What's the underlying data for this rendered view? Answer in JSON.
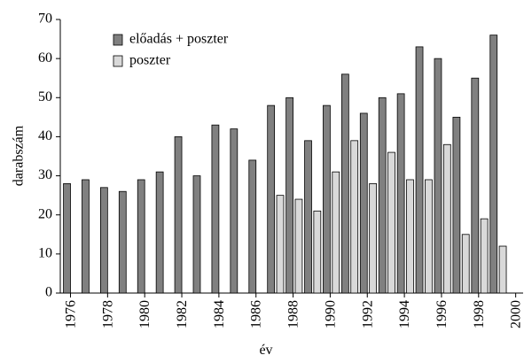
{
  "chart_data": {
    "type": "bar",
    "x": [
      1976,
      1977,
      1978,
      1979,
      1980,
      1981,
      1982,
      1983,
      1984,
      1985,
      1986,
      1987,
      1988,
      1989,
      1990,
      1991,
      1992,
      1993,
      1994,
      1995,
      1996,
      1997,
      1998,
      1999
    ],
    "series": [
      {
        "name": "előadás + poszter",
        "color": "#808080",
        "values": [
          28,
          29,
          27,
          26,
          29,
          31,
          40,
          30,
          43,
          42,
          34,
          48,
          50,
          39,
          48,
          56,
          46,
          50,
          51,
          63,
          60,
          45,
          55,
          66
        ]
      },
      {
        "name": "poszter",
        "color": "#d9d9d9",
        "values": [
          null,
          null,
          null,
          null,
          null,
          null,
          null,
          null,
          null,
          null,
          null,
          25,
          24,
          21,
          31,
          39,
          28,
          36,
          29,
          29,
          38,
          15,
          19,
          12
        ]
      }
    ],
    "xlabel": "év",
    "ylabel": "darabszám",
    "xlim": [
      1975.45,
      2000.4
    ],
    "xticks": [
      1976,
      1978,
      1980,
      1982,
      1984,
      1986,
      1988,
      1990,
      1992,
      1994,
      1996,
      1998,
      2000
    ],
    "ylim": [
      0,
      70
    ],
    "yticks": [
      0,
      10,
      20,
      30,
      40,
      50,
      60,
      70
    ],
    "legend": "top-left"
  }
}
